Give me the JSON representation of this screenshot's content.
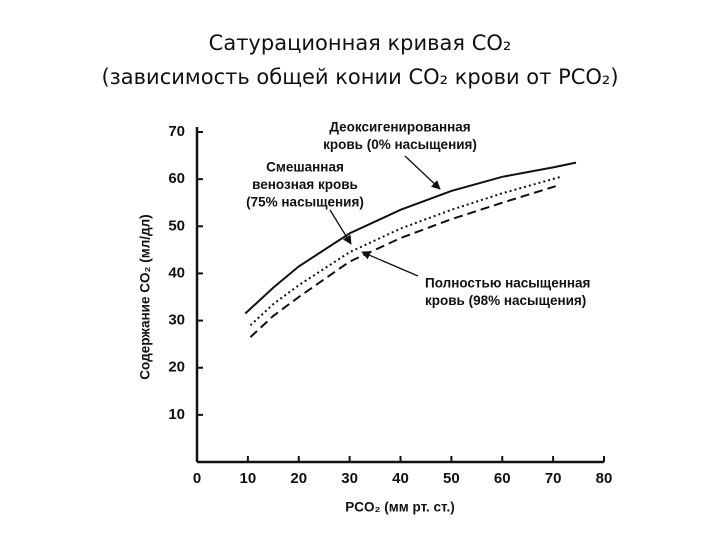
{
  "chart_data": {
    "type": "line",
    "title": [
      "Сатурационная кривая CO₂",
      "(зависимость общей конии CO₂ крови от PCO₂)"
    ],
    "x_label": "PCO₂ (мм рт. ст.)",
    "y_label": "Содержание CO₂ (мл/дл)",
    "xlim": [
      0,
      80
    ],
    "xticks": [
      0,
      10,
      20,
      30,
      40,
      50,
      60,
      70,
      80
    ],
    "ylim": [
      0,
      70
    ],
    "yticks": [
      10,
      20,
      30,
      40,
      50,
      60,
      70
    ],
    "grid": false,
    "series": [
      {
        "name": "Деоксигенированная кровь (0% насыщения)",
        "color": "#111111",
        "dash": "solid",
        "x": [
          9.5,
          15,
          20,
          30,
          40,
          50,
          60,
          70,
          74.5
        ],
        "values": [
          31.5,
          37,
          41.5,
          48.5,
          53.5,
          57.5,
          60.5,
          62.5,
          63.5
        ]
      },
      {
        "name": "Смешанная венозная кровь (75% насыщения)",
        "color": "#111111",
        "dash": "dotted",
        "x": [
          10.5,
          15,
          20,
          30,
          40,
          50,
          60,
          71.5
        ],
        "values": [
          29,
          33.5,
          37.5,
          44.5,
          49.5,
          53.5,
          57,
          60.5
        ]
      },
      {
        "name": "Полностью насыщенная кровь (98% насыщения)",
        "color": "#111111",
        "dash": "dashed",
        "x": [
          10.5,
          15,
          20,
          30,
          40,
          50,
          60,
          70.5
        ],
        "values": [
          26.5,
          31,
          35,
          42.5,
          47.5,
          51.5,
          55,
          58.5
        ]
      }
    ],
    "annotations": [
      {
        "lines": [
          "Деоксигенированная",
          "кровь (0% насыщения)"
        ]
      },
      {
        "lines": [
          "Смешанная",
          "венозная кровь",
          "(75% насыщения)"
        ]
      },
      {
        "lines": [
          "Полностью насыщенная",
          "кровь (98% насыщения)"
        ]
      }
    ]
  }
}
